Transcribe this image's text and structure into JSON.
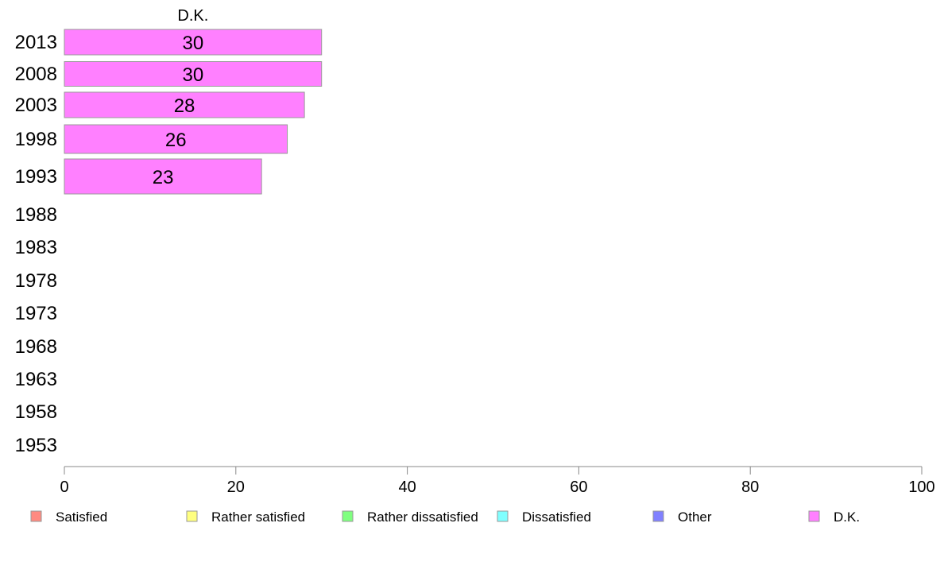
{
  "chart_data": {
    "type": "bar",
    "orientation": "horizontal",
    "stacked": true,
    "categories": [
      "2013",
      "2008",
      "2003",
      "1998",
      "1993",
      "1988",
      "1983",
      "1978",
      "1973",
      "1968",
      "1963",
      "1958",
      "1953"
    ],
    "series": [
      {
        "name": "Satisfied",
        "color": "#ff8a80",
        "values": [
          null,
          null,
          null,
          null,
          null,
          null,
          null,
          null,
          null,
          null,
          null,
          null,
          null
        ]
      },
      {
        "name": "Rather satisfied",
        "color": "#ffff80",
        "values": [
          null,
          null,
          null,
          null,
          null,
          null,
          null,
          null,
          null,
          null,
          null,
          null,
          null
        ]
      },
      {
        "name": "Rather dissatisfied",
        "color": "#80ff80",
        "values": [
          null,
          null,
          null,
          null,
          null,
          null,
          null,
          null,
          null,
          null,
          null,
          null,
          null
        ]
      },
      {
        "name": "Dissatisfied",
        "color": "#80ffff",
        "values": [
          null,
          null,
          null,
          null,
          null,
          null,
          null,
          null,
          null,
          null,
          null,
          null,
          null
        ]
      },
      {
        "name": "Other",
        "color": "#8080ff",
        "values": [
          null,
          null,
          null,
          null,
          null,
          null,
          null,
          null,
          null,
          null,
          null,
          null,
          null
        ]
      },
      {
        "name": "D.K.",
        "color": "#ff80ff",
        "values": [
          30,
          30,
          28,
          26,
          23,
          null,
          null,
          null,
          null,
          null,
          null,
          null,
          null
        ]
      }
    ],
    "top_label": "D.K.",
    "xlim": [
      0,
      100
    ],
    "xticks": [
      "0",
      "20",
      "40",
      "60",
      "80",
      "100"
    ],
    "xlabel": "",
    "ylabel": "",
    "grid": false,
    "legend_position": "bottom"
  }
}
